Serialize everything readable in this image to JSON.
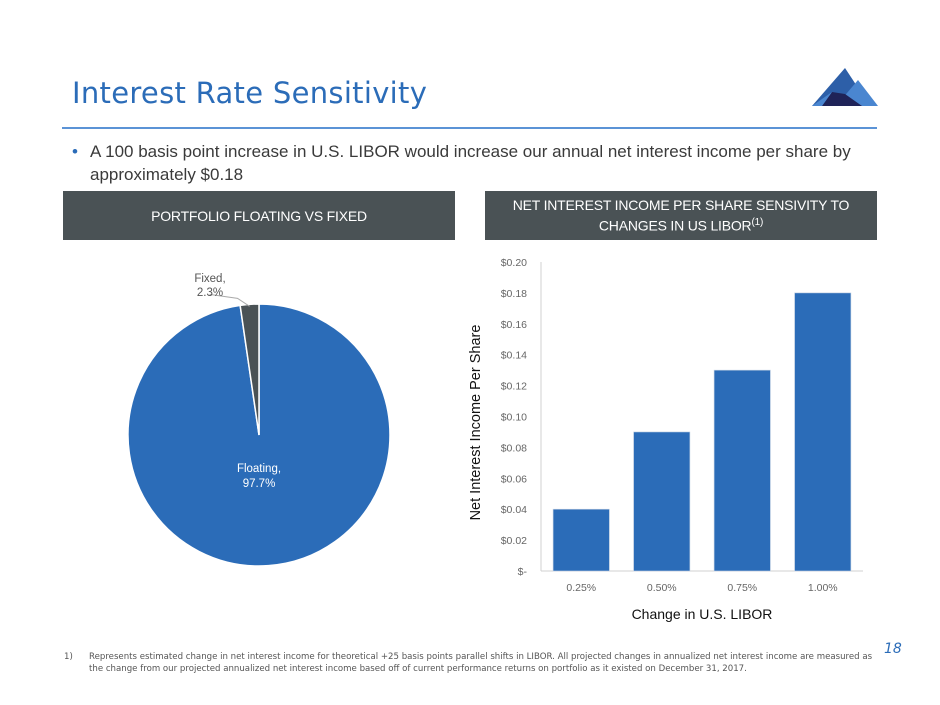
{
  "slide": {
    "title": "Interest Rate Sensitivity",
    "bullet": "A 100 basis point increase in U.S. LIBOR would increase our annual net interest income per share by approximately $0.18",
    "page_number": "18",
    "footnote_marker": "1)",
    "footnote": "Represents estimated change in net interest income for theoretical +25 basis points parallel shifts in LIBOR. All projected changes in annualized net interest income are measured as the change from our projected annualized net interest income based off of current performance returns on portfolio as it existed on December 31, 2017.",
    "logo_icon": "mountain-logo-icon",
    "colors": {
      "title": "#2b6cb8",
      "header_bg": "#4a5255",
      "floating": "#2b6cb8",
      "fixed": "#4a5255",
      "bar": "#2b6cb8"
    }
  },
  "left_panel": {
    "header": "PORTFOLIO FLOATING VS FIXED"
  },
  "right_panel": {
    "header_line1": "NET INTEREST INCOME PER SHARE SENSIVITY TO",
    "header_line2": "CHANGES IN US LIBOR",
    "header_sup": "(1)"
  },
  "chart_data": [
    {
      "type": "pie",
      "title": "Portfolio Floating vs Fixed",
      "slices": [
        {
          "label": "Floating",
          "value": 97.7,
          "display": "97.7%",
          "color": "#2b6cb8"
        },
        {
          "label": "Fixed",
          "value": 2.3,
          "display": "2.3%",
          "color": "#4a5255"
        }
      ],
      "legend": "none"
    },
    {
      "type": "bar",
      "title": "Net Interest Income Per Share Sensivity to Changes in US LIBOR",
      "categories": [
        "0.25%",
        "0.50%",
        "0.75%",
        "1.00%"
      ],
      "values": [
        0.04,
        0.09,
        0.13,
        0.18
      ],
      "xlabel": "Change in U.S. LIBOR",
      "ylabel": "Net Interest Income Per Share",
      "ylim": [
        0,
        0.2
      ],
      "yticks": [
        0,
        0.02,
        0.04,
        0.06,
        0.08,
        0.1,
        0.12,
        0.14,
        0.16,
        0.18,
        0.2
      ],
      "ytick_labels": [
        "$-",
        "$0.02",
        "$0.04",
        "$0.06",
        "$0.08",
        "$0.10",
        "$0.12",
        "$0.14",
        "$0.16",
        "$0.18",
        "$0.20"
      ],
      "grid": false,
      "legend": "none"
    }
  ]
}
